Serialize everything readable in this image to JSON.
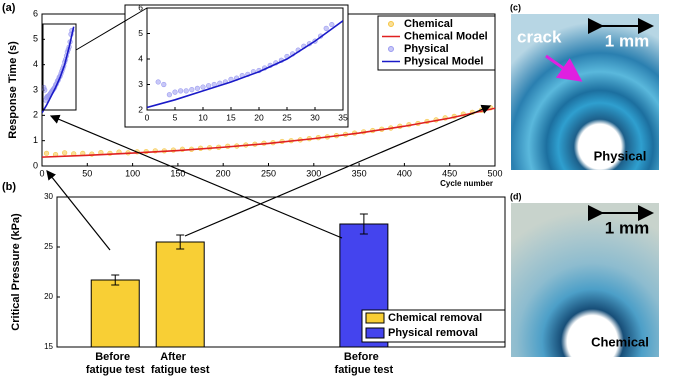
{
  "chart_data": [
    {
      "type": "line",
      "panel_label": "(a)",
      "ylabel": "Response Time (s)",
      "xlabel": "Cycle number",
      "xlim": [
        0,
        500
      ],
      "xticks": [
        0,
        50,
        100,
        150,
        200,
        250,
        300,
        350,
        400,
        450,
        500
      ],
      "ylim": [
        0,
        6
      ],
      "yticks": [
        0,
        1,
        2,
        3,
        4,
        5,
        6
      ],
      "series": [
        {
          "name": "Chemical",
          "style": "marker",
          "color": "#f5c542",
          "x": [
            5,
            15,
            25,
            35,
            45,
            55,
            65,
            75,
            85,
            95,
            105,
            115,
            125,
            135,
            145,
            155,
            165,
            175,
            185,
            195,
            205,
            215,
            225,
            235,
            245,
            255,
            265,
            275,
            285,
            295,
            305,
            315,
            325,
            335,
            345,
            355,
            365,
            375,
            385,
            395,
            405,
            415,
            425,
            435,
            445,
            455,
            465,
            475,
            485,
            495
          ],
          "values": [
            0.5,
            0.45,
            0.52,
            0.48,
            0.5,
            0.47,
            0.53,
            0.5,
            0.55,
            0.52,
            0.56,
            0.57,
            0.6,
            0.6,
            0.63,
            0.66,
            0.66,
            0.7,
            0.72,
            0.74,
            0.78,
            0.79,
            0.83,
            0.86,
            0.9,
            0.92,
            0.97,
            1.0,
            1.03,
            1.08,
            1.12,
            1.15,
            1.2,
            1.25,
            1.3,
            1.35,
            1.4,
            1.45,
            1.5,
            1.57,
            1.63,
            1.68,
            1.76,
            1.82,
            1.9,
            1.96,
            2.05,
            2.12,
            2.2,
            2.3
          ]
        },
        {
          "name": "Chemical Model",
          "style": "line",
          "color": "#e02020",
          "x": [
            0,
            50,
            100,
            150,
            200,
            250,
            300,
            350,
            400,
            450,
            500
          ],
          "values": [
            0.35,
            0.42,
            0.51,
            0.61,
            0.74,
            0.89,
            1.08,
            1.3,
            1.57,
            1.89,
            2.28
          ]
        },
        {
          "name": "Physical",
          "style": "marker",
          "color": "#9a9af0",
          "x": [
            2,
            3,
            4,
            5,
            6,
            7,
            8,
            9,
            10,
            11,
            12,
            13,
            14,
            15,
            16,
            17,
            18,
            19,
            20,
            21,
            22,
            23,
            24,
            25,
            26,
            27,
            28,
            29,
            30,
            31,
            32,
            33
          ],
          "values": [
            3.1,
            3.0,
            2.6,
            2.7,
            2.75,
            2.75,
            2.8,
            2.85,
            2.9,
            2.95,
            3.0,
            3.05,
            3.1,
            3.2,
            3.25,
            3.35,
            3.4,
            3.5,
            3.55,
            3.65,
            3.75,
            3.85,
            3.95,
            4.1,
            4.2,
            4.35,
            4.5,
            4.6,
            4.7,
            4.9,
            5.2,
            5.35
          ]
        },
        {
          "name": "Physical Model",
          "style": "line",
          "color": "#1a1ac8",
          "x": [
            0,
            5,
            10,
            15,
            20,
            25,
            30,
            35
          ],
          "values": [
            2.1,
            2.4,
            2.75,
            3.1,
            3.5,
            4.0,
            4.7,
            5.5
          ]
        }
      ],
      "inset": {
        "xlim": [
          0,
          35
        ],
        "xticks": [
          0,
          5,
          10,
          15,
          20,
          25,
          30,
          35
        ],
        "ylim": [
          2,
          6
        ],
        "yticks": [
          2,
          3,
          4,
          5,
          6
        ]
      }
    },
    {
      "type": "bar",
      "panel_label": "(b)",
      "ylabel": "Critical Pressure (kPa)",
      "ylim": [
        15,
        30
      ],
      "yticks": [
        15,
        20,
        25,
        30
      ],
      "categories": [
        [
          "Before",
          "fatigue test"
        ],
        [
          "After",
          "fatigue test"
        ],
        [
          "Before",
          "fatigue test"
        ]
      ],
      "series": [
        {
          "name": "Chemical removal",
          "color": "#f8cf35",
          "values": [
            21.7,
            25.5,
            null
          ],
          "errors": [
            0.5,
            0.7,
            null
          ]
        },
        {
          "name": "Physical removal",
          "color": "#4444ee",
          "values": [
            null,
            null,
            27.3
          ],
          "errors": [
            null,
            null,
            1.0
          ]
        }
      ]
    }
  ],
  "images": [
    {
      "panel_label": "(c)",
      "scale": "1 mm",
      "annotation": "crack",
      "caption": "Physical"
    },
    {
      "panel_label": "(d)",
      "scale": "1 mm",
      "caption": "Chemical"
    }
  ]
}
